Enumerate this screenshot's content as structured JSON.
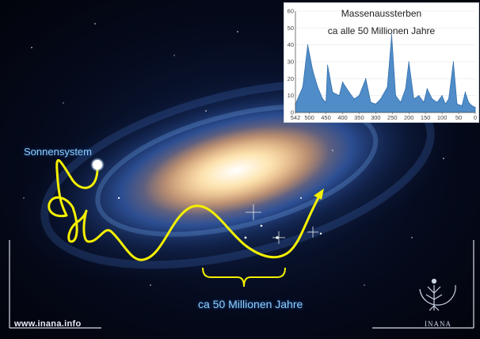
{
  "diagram": {
    "sun_label": "Sonnensystem",
    "cycle_label": "ca 50 Millionen Jahre",
    "website": "www.inana.info",
    "logo_text": "INANA",
    "colors": {
      "path": "#f4f000",
      "label": "#8fd0ff",
      "chart_fill": "#4f8cc8",
      "chart_stroke": "#2f6aa8"
    },
    "icons": [
      "sun-dot-icon",
      "arrow-head-icon",
      "bracket-icon",
      "inana-logo-icon"
    ]
  },
  "chart_data": {
    "type": "area",
    "title": "Massenaussterben",
    "subtitle": "ca alle 50 Millionen Jahre",
    "xlabel": "",
    "ylabel": "",
    "x_reversed": true,
    "xlim": [
      542,
      0
    ],
    "ylim": [
      0,
      60
    ],
    "x_ticks": [
      542,
      500,
      450,
      400,
      350,
      300,
      250,
      200,
      150,
      100,
      50,
      0
    ],
    "y_ticks": [
      0,
      10,
      20,
      30,
      40,
      50,
      60
    ],
    "grid": true,
    "x": [
      542,
      520,
      505,
      490,
      475,
      460,
      450,
      445,
      430,
      410,
      400,
      380,
      365,
      350,
      330,
      315,
      300,
      285,
      265,
      252,
      240,
      225,
      210,
      200,
      185,
      170,
      155,
      145,
      130,
      115,
      100,
      90,
      80,
      66,
      55,
      40,
      30,
      20,
      10,
      0
    ],
    "values": [
      5,
      15,
      40,
      25,
      15,
      8,
      6,
      28,
      12,
      10,
      18,
      12,
      8,
      10,
      20,
      6,
      5,
      8,
      15,
      46,
      10,
      6,
      14,
      30,
      8,
      10,
      6,
      14,
      8,
      6,
      10,
      5,
      8,
      30,
      5,
      4,
      12,
      6,
      4,
      3
    ]
  }
}
